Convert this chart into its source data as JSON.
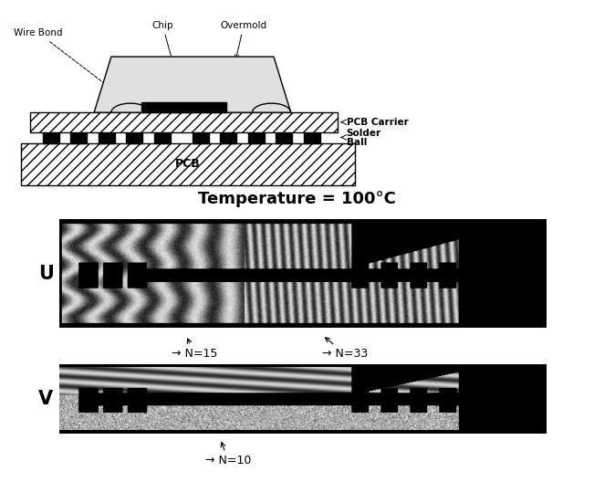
{
  "white": "#ffffff",
  "black": "#000000",
  "title_temp": "Temperature = 100°C",
  "label_U": "U",
  "label_V": "V",
  "annot_N15": "→ N=15",
  "annot_N33": "→ N=33",
  "annot_N10": "→ N=10",
  "labels": {
    "wire_bond": "Wire Bond",
    "chip": "Chip",
    "overmold": "Overmold",
    "pcb_carrier": "PCB Carrier",
    "solder_ball": "Solder\nBall",
    "pcb": "PCB"
  },
  "fig_width": 6.51,
  "fig_height": 5.28,
  "dpi": 100
}
